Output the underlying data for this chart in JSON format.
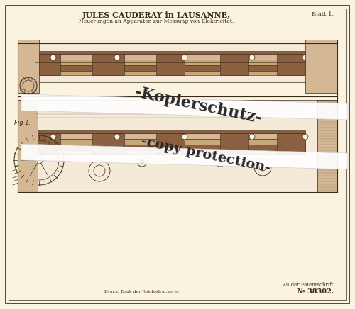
{
  "bg_color": "#f5ead8",
  "page_bg": "#faf3e0",
  "title_line1": "JULES CAUDERAY in LAUSANNE.",
  "title_line2": "Neuerungen an Apparaten zur Messung von Elektricität.",
  "blatt": "Blatt 1.",
  "patent_ref": "Zu der Patentschrift",
  "patent_no": "№ 38302.",
  "bottom_text": "Druck: Druk der Reichsdruckerei.",
  "fig_label": "Fig 1.",
  "watermark_line1": "-Kopierschutz-",
  "watermark_line2": "-copy protection-",
  "border_color": "#2a2a2a",
  "drawing_color": "#3a2a1a",
  "tan_color": "#c8a878",
  "dark_tan": "#8b6040",
  "light_tan": "#d4b896"
}
